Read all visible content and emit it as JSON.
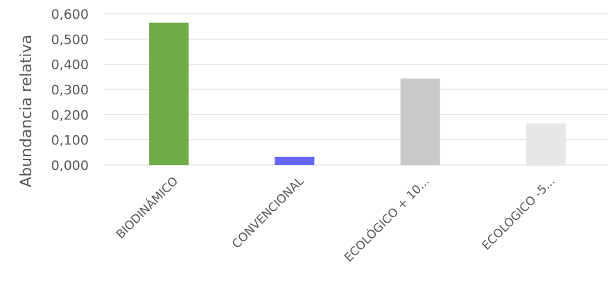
{
  "chart_data": {
    "type": "bar",
    "title": "",
    "xlabel": "",
    "ylabel": "Abundancia relativa",
    "categories": [
      "BIODINÁMICO",
      "CONVENCIONAL",
      "ECOLÓGICO + 10...",
      "ECOLÓGICO -5..."
    ],
    "values": [
      0.565,
      0.033,
      0.343,
      0.165
    ],
    "bar_colors": [
      "#70ad47",
      "#6666ff",
      "#c9c9c9",
      "#e7e7e7"
    ],
    "ylim": [
      0,
      0.6
    ],
    "yticks": [
      0,
      0.1,
      0.2,
      0.3,
      0.4,
      0.5,
      0.6
    ],
    "ytick_labels": [
      "0,000",
      "0,100",
      "0,200",
      "0,300",
      "0,400",
      "0,500",
      "0,600"
    ],
    "grid": true,
    "legend": "none"
  }
}
